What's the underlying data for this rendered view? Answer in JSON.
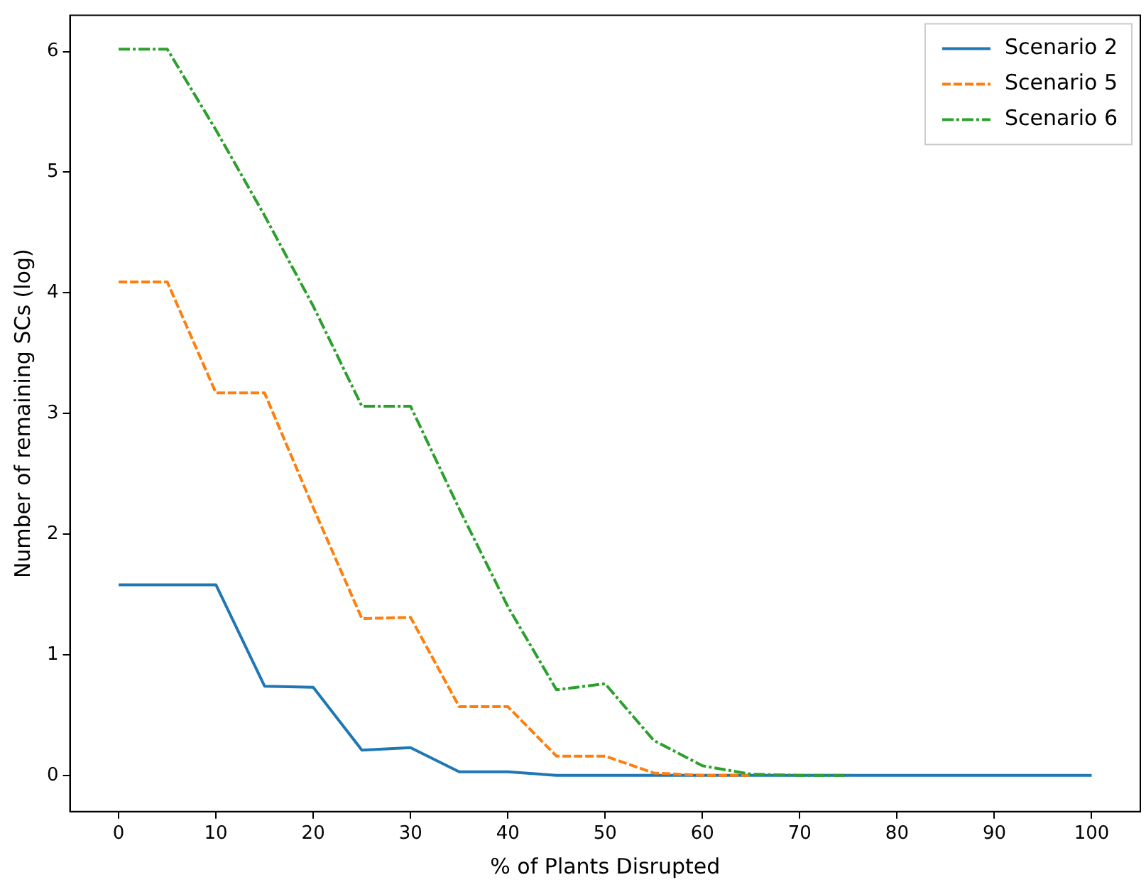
{
  "chart_data": {
    "type": "line",
    "xlabel": "% of Plants Disrupted",
    "ylabel": "Number of remaining SCs (log)",
    "x": [
      0,
      5,
      10,
      15,
      20,
      25,
      30,
      35,
      40,
      45,
      50,
      55,
      60,
      65,
      70,
      75,
      80,
      85,
      90,
      95,
      100
    ],
    "series": [
      {
        "name": "Scenario 2",
        "color": "#1f77b4",
        "line_style": "solid",
        "values": [
          1.58,
          1.58,
          1.58,
          0.74,
          0.73,
          0.21,
          0.23,
          0.03,
          0.03,
          0,
          0,
          0,
          0,
          0,
          0,
          0,
          0,
          0,
          0,
          0,
          0
        ]
      },
      {
        "name": "Scenario 5",
        "color": "#ff7f0e",
        "line_style": "dashed",
        "values": [
          4.09,
          4.09,
          3.17,
          3.17,
          2.22,
          1.3,
          1.31,
          0.57,
          0.57,
          0.16,
          0.16,
          0.02,
          0,
          0,
          null,
          null,
          null,
          null,
          null,
          null,
          null
        ]
      },
      {
        "name": "Scenario 6",
        "color": "#2ca02c",
        "line_style": "dashdot",
        "values": [
          6.02,
          6.02,
          5.35,
          4.64,
          3.89,
          3.06,
          3.06,
          2.21,
          1.4,
          0.71,
          0.76,
          0.29,
          0.08,
          0.01,
          0,
          0,
          null,
          null,
          null,
          null,
          null
        ]
      }
    ],
    "xlim": [
      -5,
      105
    ],
    "xticks": [
      0,
      10,
      20,
      30,
      40,
      50,
      60,
      70,
      80,
      90,
      100
    ],
    "ylim": [
      -0.3,
      6.3
    ],
    "yticks": [
      0,
      1,
      2,
      3,
      4,
      5,
      6
    ],
    "grid": false,
    "legend": "top right",
    "marker": "none"
  }
}
